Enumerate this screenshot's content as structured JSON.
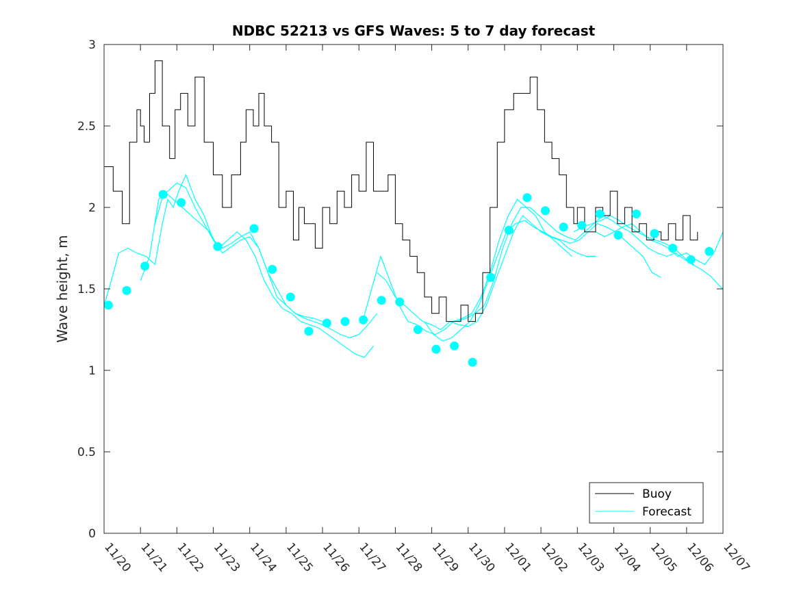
{
  "chart_data": {
    "type": "line",
    "title": "NDBC 52213 vs GFS Waves: 5 to 7 day forecast",
    "xlabel": "",
    "ylabel": "Wave height, m",
    "x_units": "days since 11/20",
    "xlim": [
      0,
      17
    ],
    "ylim": [
      0,
      3
    ],
    "yticks": [
      0,
      0.5,
      1,
      1.5,
      2,
      2.5,
      3
    ],
    "ytick_labels": [
      "0",
      "0.5",
      "1",
      "1.5",
      "2",
      "2.5",
      "3"
    ],
    "xtick_labels": [
      "11/20",
      "11/21",
      "11/22",
      "11/23",
      "11/24",
      "11/25",
      "11/26",
      "11/27",
      "11/28",
      "11/29",
      "11/30",
      "12/01",
      "12/02",
      "12/03",
      "12/04",
      "12/05",
      "12/06",
      "12/07"
    ],
    "legend": {
      "placement": "bottom-right",
      "entries": [
        "Buoy",
        "Forecast"
      ]
    },
    "colors": {
      "buoy": "#000000",
      "forecast": "#00ffff",
      "axis": "#262626"
    },
    "buoy": {
      "name": "Buoy",
      "x": [
        0.0,
        0.25,
        0.5,
        0.7,
        0.9,
        1.0,
        1.1,
        1.25,
        1.4,
        1.6,
        1.8,
        1.95,
        2.1,
        2.3,
        2.5,
        2.75,
        3.0,
        3.25,
        3.5,
        3.75,
        3.9,
        4.1,
        4.25,
        4.4,
        4.6,
        4.8,
        5.0,
        5.2,
        5.35,
        5.5,
        5.8,
        6.0,
        6.2,
        6.4,
        6.6,
        6.8,
        7.0,
        7.2,
        7.4,
        7.6,
        7.8,
        8.0,
        8.2,
        8.4,
        8.6,
        8.8,
        9.0,
        9.2,
        9.4,
        9.6,
        9.8,
        10.0,
        10.2,
        10.4,
        10.6,
        10.8,
        11.0,
        11.25,
        11.5,
        11.7,
        11.9,
        12.1,
        12.3,
        12.5,
        12.7,
        12.9,
        13.0,
        13.2,
        13.5,
        13.7,
        13.9,
        14.1,
        14.3,
        14.5,
        14.7,
        14.9,
        15.1,
        15.3,
        15.5,
        15.7,
        15.9,
        16.1,
        16.3
      ],
      "y": [
        2.25,
        2.1,
        1.9,
        2.4,
        2.6,
        2.5,
        2.4,
        2.7,
        2.9,
        2.5,
        2.3,
        2.6,
        2.7,
        2.5,
        2.8,
        2.4,
        2.2,
        2.0,
        2.2,
        2.4,
        2.6,
        2.5,
        2.7,
        2.5,
        2.4,
        2.0,
        2.1,
        1.8,
        2.0,
        1.9,
        1.75,
        2.0,
        1.9,
        2.1,
        2.0,
        2.2,
        2.1,
        2.4,
        2.1,
        2.1,
        2.2,
        1.9,
        1.8,
        1.7,
        1.6,
        1.45,
        1.35,
        1.45,
        1.3,
        1.3,
        1.4,
        1.3,
        1.35,
        1.6,
        2.0,
        2.4,
        2.6,
        2.7,
        2.7,
        2.8,
        2.6,
        2.4,
        2.3,
        2.2,
        2.0,
        1.9,
        2.0,
        1.85,
        2.0,
        1.95,
        2.1,
        1.9,
        2.0,
        1.85,
        1.9,
        1.8,
        1.85,
        1.8,
        1.9,
        1.8,
        1.95,
        1.8,
        1.85
      ]
    },
    "forecast": {
      "name": "Forecast",
      "series": [
        {
          "x": [
            0.0,
            0.2,
            0.4,
            0.65,
            0.9,
            1.15,
            1.4,
            1.6,
            1.75,
            1.9,
            2.05,
            2.25,
            2.5,
            2.75,
            3.0,
            3.25,
            3.5,
            3.75,
            4.0,
            4.25,
            4.5,
            4.75,
            5.0,
            5.25,
            5.5,
            5.75,
            6.0
          ],
          "y": [
            1.4,
            1.55,
            1.72,
            1.75,
            1.72,
            1.7,
            1.65,
            1.9,
            2.05,
            2.0,
            2.1,
            2.2,
            2.05,
            1.95,
            1.8,
            1.72,
            1.76,
            1.8,
            1.82,
            1.75,
            1.6,
            1.45,
            1.4,
            1.35,
            1.33,
            1.32,
            1.3
          ]
        },
        {
          "x": [
            1.0,
            1.25,
            1.5,
            1.75,
            2.0,
            2.25,
            2.5,
            2.75,
            3.0,
            3.25,
            3.5,
            3.75,
            4.0,
            4.25,
            4.5,
            4.75,
            5.0,
            5.25,
            5.5,
            5.75,
            6.0,
            6.25,
            6.5,
            6.75,
            7.0,
            7.25,
            7.5
          ],
          "y": [
            1.55,
            1.7,
            2.05,
            2.1,
            2.15,
            2.12,
            2.0,
            1.9,
            1.8,
            1.75,
            1.78,
            1.82,
            1.85,
            1.75,
            1.6,
            1.5,
            1.4,
            1.35,
            1.32,
            1.3,
            1.28,
            1.25,
            1.22,
            1.2,
            1.22,
            1.28,
            1.35
          ]
        },
        {
          "x": [
            1.4,
            1.65,
            1.9,
            2.15,
            2.4,
            2.65,
            2.9,
            3.15,
            3.4,
            3.65,
            3.9,
            4.15,
            4.4,
            4.65,
            4.9,
            5.15,
            5.4,
            5.65,
            5.9,
            6.15,
            6.4,
            6.65,
            6.9,
            7.15,
            7.4
          ],
          "y": [
            1.9,
            2.1,
            2.05,
            2.0,
            1.95,
            1.9,
            1.85,
            1.75,
            1.8,
            1.85,
            1.8,
            1.7,
            1.55,
            1.45,
            1.38,
            1.35,
            1.3,
            1.28,
            1.26,
            1.22,
            1.18,
            1.14,
            1.1,
            1.08,
            1.15
          ]
        },
        {
          "x": [
            7.1,
            7.35,
            7.6,
            7.85,
            8.1,
            8.35,
            8.6,
            8.85,
            9.1,
            9.35,
            9.6,
            9.85,
            10.1,
            10.35,
            10.6,
            10.85,
            11.1,
            11.35,
            11.6,
            11.85,
            12.1,
            12.35,
            12.6,
            12.85
          ],
          "y": [
            1.3,
            1.5,
            1.7,
            1.55,
            1.4,
            1.3,
            1.28,
            1.24,
            1.22,
            1.25,
            1.3,
            1.32,
            1.35,
            1.45,
            1.6,
            1.8,
            1.95,
            2.05,
            2.0,
            1.95,
            1.85,
            1.8,
            1.75,
            1.7
          ]
        },
        {
          "x": [
            7.5,
            7.75,
            8.0,
            8.25,
            8.5,
            8.75,
            9.0,
            9.25,
            9.5,
            9.75,
            10.0,
            10.25,
            10.5,
            10.75,
            11.0,
            11.25,
            11.5,
            11.75,
            12.0,
            12.25,
            12.5,
            12.75,
            13.0,
            13.25,
            13.5
          ],
          "y": [
            1.6,
            1.55,
            1.45,
            1.4,
            1.35,
            1.3,
            1.28,
            1.25,
            1.3,
            1.28,
            1.27,
            1.3,
            1.4,
            1.55,
            1.7,
            1.85,
            1.95,
            1.9,
            1.85,
            1.82,
            1.8,
            1.75,
            1.72,
            1.7,
            1.7
          ]
        },
        {
          "x": [
            8.8,
            9.05,
            9.3,
            9.55,
            9.8,
            10.05,
            10.3,
            10.55,
            10.8,
            11.05,
            11.3,
            11.55,
            11.8,
            12.05,
            12.3,
            12.55,
            12.8,
            13.05,
            13.3,
            13.55,
            13.8,
            14.05,
            14.3,
            14.55,
            14.8,
            15.05,
            15.3
          ],
          "y": [
            1.3,
            1.22,
            1.18,
            1.2,
            1.25,
            1.3,
            1.4,
            1.55,
            1.7,
            1.85,
            1.9,
            1.92,
            1.88,
            1.85,
            1.82,
            1.8,
            1.78,
            1.8,
            1.85,
            1.9,
            1.88,
            1.85,
            1.8,
            1.75,
            1.7,
            1.6,
            1.57
          ]
        },
        {
          "x": [
            9.7,
            9.95,
            10.2,
            10.45,
            10.7,
            10.95,
            11.2,
            11.45,
            11.7,
            11.95,
            12.2,
            12.45,
            12.7,
            12.95,
            13.2,
            13.45,
            13.7,
            13.95,
            14.2,
            14.45,
            14.7,
            14.95,
            15.2,
            15.45,
            15.7,
            15.95,
            16.2
          ],
          "y": [
            1.3,
            1.32,
            1.35,
            1.4,
            1.55,
            1.75,
            1.9,
            2.0,
            2.0,
            1.95,
            1.9,
            1.85,
            1.82,
            1.8,
            1.85,
            1.9,
            1.95,
            1.92,
            1.88,
            1.85,
            1.8,
            1.75,
            1.72,
            1.7,
            1.72,
            1.68,
            1.65
          ]
        },
        {
          "x": [
            12.9,
            13.15,
            13.4,
            13.65,
            13.9,
            14.15,
            14.4,
            14.65,
            14.9,
            15.15,
            15.4,
            15.65,
            15.9,
            16.15,
            16.4,
            16.65,
            16.9,
            17.0
          ],
          "y": [
            1.85,
            1.88,
            1.9,
            1.92,
            1.95,
            1.92,
            1.88,
            1.85,
            1.82,
            1.8,
            1.78,
            1.75,
            1.7,
            1.65,
            1.62,
            1.58,
            1.52,
            1.5
          ]
        },
        {
          "x": [
            13.5,
            13.75,
            14.0,
            14.25,
            14.5,
            14.75,
            15.0,
            15.25,
            15.5,
            15.75,
            16.0,
            16.25,
            16.5,
            16.75,
            17.0
          ],
          "y": [
            1.85,
            1.82,
            1.85,
            1.88,
            1.9,
            1.85,
            1.8,
            1.78,
            1.75,
            1.7,
            1.72,
            1.68,
            1.65,
            1.72,
            1.85
          ]
        }
      ]
    },
    "forecast_markers": {
      "x": [
        0.12,
        0.62,
        1.12,
        1.62,
        2.12,
        3.12,
        4.12,
        4.62,
        5.12,
        5.62,
        6.12,
        6.62,
        7.12,
        7.62,
        8.12,
        8.62,
        9.12,
        9.62,
        10.12,
        10.62,
        11.12,
        11.62,
        12.12,
        12.62,
        13.12,
        13.62,
        14.12,
        14.62,
        15.12,
        15.62,
        16.12,
        16.62
      ],
      "y": [
        1.4,
        1.49,
        1.64,
        2.08,
        2.03,
        1.76,
        1.87,
        1.62,
        1.45,
        1.24,
        1.29,
        1.3,
        1.31,
        1.43,
        1.42,
        1.25,
        1.13,
        1.15,
        1.05,
        1.57,
        1.86,
        2.06,
        1.98,
        1.88,
        1.89,
        1.96,
        1.83,
        1.96,
        1.84,
        1.75,
        1.68,
        1.73
      ]
    }
  }
}
